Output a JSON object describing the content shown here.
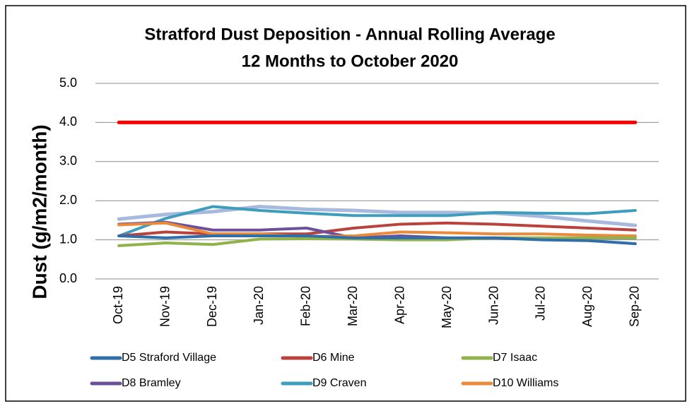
{
  "chart_data": {
    "type": "line",
    "title": [
      "Stratford Dust Deposition - Annual Rolling Average",
      "12 Months to October 2020"
    ],
    "y_label": "Dust (g/m2/month)",
    "categories": [
      "Oct-19",
      "Nov-19",
      "Dec-19",
      "Jan-20",
      "Feb-20",
      "Mar-20",
      "Apr-20",
      "May-20",
      "Jun-20",
      "Jul-20",
      "Aug-20",
      "Sep-20"
    ],
    "ylim": [
      0,
      5
    ],
    "yticks": [
      {
        "value": 0,
        "label": "0.0"
      },
      {
        "value": 1,
        "label": "1.0"
      },
      {
        "value": 2,
        "label": "2.0"
      },
      {
        "value": 3,
        "label": "3.0"
      },
      {
        "value": 4,
        "label": "4.0"
      },
      {
        "value": 5,
        "label": "5.0"
      }
    ],
    "grid": true,
    "legend": "bottom",
    "series": [
      {
        "color": "#a7b9dd",
        "values": [
          1.53,
          1.65,
          1.72,
          1.85,
          1.78,
          1.75,
          1.7,
          1.7,
          1.68,
          1.6,
          1.48,
          1.37
        ]
      },
      {
        "name": "D9 Craven",
        "color": "#3e9cbd",
        "values": [
          1.1,
          1.55,
          1.85,
          1.75,
          1.68,
          1.62,
          1.62,
          1.62,
          1.7,
          1.68,
          1.67,
          1.75
        ]
      },
      {
        "name": "D6 Mine",
        "color": "#b9423d",
        "values": [
          1.1,
          1.2,
          1.15,
          1.15,
          1.15,
          1.3,
          1.4,
          1.43,
          1.4,
          1.35,
          1.3,
          1.25
        ]
      },
      {
        "name": "D8 Bramley",
        "color": "#6d509a",
        "values": [
          1.4,
          1.45,
          1.25,
          1.25,
          1.3,
          1.05,
          1.1,
          1.05,
          1.05,
          1.05,
          1.05,
          1.05
        ]
      },
      {
        "name": "D10 Williams",
        "color": "#ea8a3b",
        "values": [
          1.38,
          1.43,
          1.15,
          1.15,
          1.08,
          1.1,
          1.2,
          1.18,
          1.15,
          1.15,
          1.12,
          1.1
        ]
      },
      {
        "name": "D7 Isaac",
        "color": "#8fb24b",
        "values": [
          0.85,
          0.92,
          0.88,
          1.02,
          1.03,
          1.02,
          1.0,
          1.0,
          1.05,
          1.05,
          1.05,
          1.05
        ]
      },
      {
        "name": "D5 Straford Village",
        "color": "#2f6ea8",
        "values": [
          1.1,
          1.05,
          1.1,
          1.1,
          1.1,
          1.05,
          1.05,
          1.05,
          1.05,
          1.0,
          0.98,
          0.9
        ]
      },
      {
        "color": "#ff0000",
        "values": [
          4,
          4,
          4,
          4,
          4,
          4,
          4,
          4,
          4,
          4,
          4,
          4
        ]
      }
    ],
    "legend_order": [
      6,
      2,
      5,
      3,
      1,
      4
    ]
  }
}
